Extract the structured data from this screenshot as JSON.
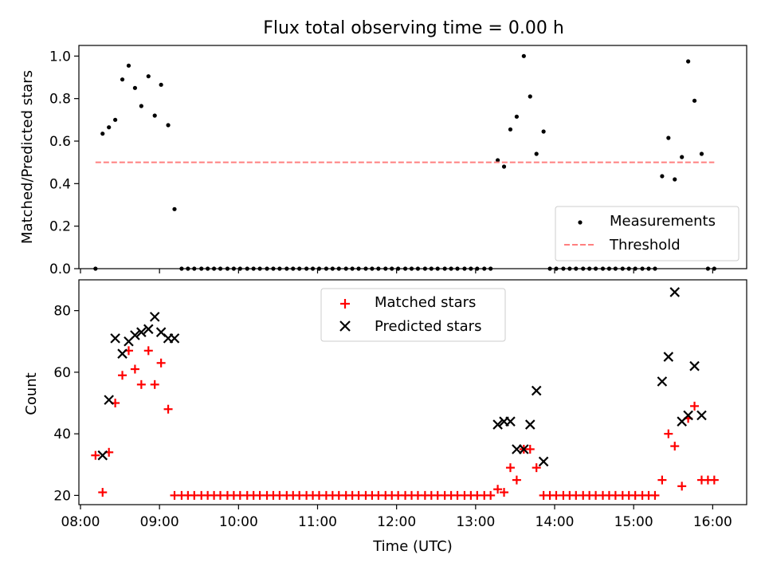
{
  "figure": {
    "title": "Flux total observing time = 0.00 h",
    "xlabel": "Time (UTC)"
  },
  "colors": {
    "measurement": "#000000",
    "threshold": "#ff7f7f",
    "matched": "#ff0000",
    "predicted": "#000000"
  },
  "chart_data": [
    {
      "type": "scatter",
      "ylabel": "Matched/Predicted stars",
      "xlim": [
        7.98,
        16.43
      ],
      "ylim": [
        0,
        1.05
      ],
      "x_ticks": [
        8,
        9,
        10,
        11,
        12,
        13,
        14,
        15,
        16
      ],
      "y_ticks": [
        0.0,
        0.2,
        0.4,
        0.6,
        0.8,
        1.0
      ],
      "y_tick_labels": [
        "0.0",
        "0.2",
        "0.4",
        "0.6",
        "0.8",
        "1.0"
      ],
      "x_tick_labels_shown": false,
      "legend": {
        "placement": "lower-right",
        "entries": [
          "Measurements",
          "Threshold"
        ]
      },
      "series": [
        {
          "name": "Measurements",
          "marker": "dot",
          "points": [
            [
              8.19,
              0.0
            ],
            [
              8.28,
              0.635
            ],
            [
              8.36,
              0.665
            ],
            [
              8.44,
              0.7
            ],
            [
              8.53,
              0.89
            ],
            [
              8.61,
              0.955
            ],
            [
              8.69,
              0.85
            ],
            [
              8.77,
              0.765
            ],
            [
              8.86,
              0.905
            ],
            [
              8.94,
              0.72
            ],
            [
              9.02,
              0.865
            ],
            [
              9.11,
              0.675
            ],
            [
              9.19,
              0.28
            ],
            [
              9.28,
              0.0
            ],
            [
              9.36,
              0.0
            ],
            [
              9.44,
              0.0
            ],
            [
              9.53,
              0.0
            ],
            [
              9.61,
              0.0
            ],
            [
              9.69,
              0.0
            ],
            [
              9.77,
              0.0
            ],
            [
              9.86,
              0.0
            ],
            [
              9.94,
              0.0
            ],
            [
              10.02,
              0.0
            ],
            [
              10.11,
              0.0
            ],
            [
              10.19,
              0.0
            ],
            [
              10.27,
              0.0
            ],
            [
              10.36,
              0.0
            ],
            [
              10.44,
              0.0
            ],
            [
              10.52,
              0.0
            ],
            [
              10.61,
              0.0
            ],
            [
              10.69,
              0.0
            ],
            [
              10.77,
              0.0
            ],
            [
              10.86,
              0.0
            ],
            [
              10.94,
              0.0
            ],
            [
              11.02,
              0.0
            ],
            [
              11.11,
              0.0
            ],
            [
              11.19,
              0.0
            ],
            [
              11.27,
              0.0
            ],
            [
              11.36,
              0.0
            ],
            [
              11.44,
              0.0
            ],
            [
              11.52,
              0.0
            ],
            [
              11.61,
              0.0
            ],
            [
              11.69,
              0.0
            ],
            [
              11.77,
              0.0
            ],
            [
              11.86,
              0.0
            ],
            [
              11.94,
              0.0
            ],
            [
              12.02,
              0.0
            ],
            [
              12.11,
              0.0
            ],
            [
              12.19,
              0.0
            ],
            [
              12.27,
              0.0
            ],
            [
              12.36,
              0.0
            ],
            [
              12.44,
              0.0
            ],
            [
              12.52,
              0.0
            ],
            [
              12.61,
              0.0
            ],
            [
              12.69,
              0.0
            ],
            [
              12.77,
              0.0
            ],
            [
              12.86,
              0.0
            ],
            [
              12.94,
              0.0
            ],
            [
              13.02,
              0.0
            ],
            [
              13.11,
              0.0
            ],
            [
              13.19,
              0.0
            ],
            [
              13.28,
              0.51
            ],
            [
              13.36,
              0.48
            ],
            [
              13.44,
              0.655
            ],
            [
              13.52,
              0.715
            ],
            [
              13.61,
              1.0
            ],
            [
              13.69,
              0.81
            ],
            [
              13.77,
              0.54
            ],
            [
              13.86,
              0.645
            ],
            [
              13.94,
              0.0
            ],
            [
              14.02,
              0.0
            ],
            [
              14.11,
              0.0
            ],
            [
              14.19,
              0.0
            ],
            [
              14.27,
              0.0
            ],
            [
              14.36,
              0.0
            ],
            [
              14.44,
              0.0
            ],
            [
              14.52,
              0.0
            ],
            [
              14.61,
              0.0
            ],
            [
              14.69,
              0.0
            ],
            [
              14.77,
              0.0
            ],
            [
              14.86,
              0.0
            ],
            [
              14.94,
              0.0
            ],
            [
              15.02,
              0.0
            ],
            [
              15.11,
              0.0
            ],
            [
              15.19,
              0.0
            ],
            [
              15.27,
              0.0
            ],
            [
              15.36,
              0.435
            ],
            [
              15.44,
              0.615
            ],
            [
              15.52,
              0.42
            ],
            [
              15.61,
              0.525
            ],
            [
              15.69,
              0.975
            ],
            [
              15.77,
              0.79
            ],
            [
              15.86,
              0.54
            ],
            [
              15.94,
              0.0
            ],
            [
              16.02,
              0.0
            ]
          ]
        },
        {
          "name": "Threshold",
          "marker": "dashed-line",
          "points": [
            [
              8.19,
              0.5
            ],
            [
              16.02,
              0.5
            ]
          ]
        }
      ]
    },
    {
      "type": "scatter",
      "ylabel": "Count",
      "xlim": [
        7.98,
        16.43
      ],
      "ylim": [
        17,
        90
      ],
      "x_ticks": [
        8,
        9,
        10,
        11,
        12,
        13,
        14,
        15,
        16
      ],
      "x_tick_labels": [
        "08:00",
        "09:00",
        "10:00",
        "11:00",
        "12:00",
        "13:00",
        "14:00",
        "15:00",
        "16:00"
      ],
      "y_ticks": [
        20,
        40,
        60,
        80
      ],
      "y_tick_labels": [
        "20",
        "40",
        "60",
        "80"
      ],
      "legend": {
        "placement": "upper-center",
        "entries": [
          "Matched stars",
          "Predicted stars"
        ]
      },
      "series": [
        {
          "name": "Matched stars",
          "marker": "plus",
          "points": [
            [
              8.19,
              33
            ],
            [
              8.28,
              21
            ],
            [
              8.36,
              34
            ],
            [
              8.44,
              50
            ],
            [
              8.53,
              59
            ],
            [
              8.61,
              67
            ],
            [
              8.69,
              61
            ],
            [
              8.77,
              56
            ],
            [
              8.86,
              67
            ],
            [
              8.94,
              56
            ],
            [
              9.02,
              63
            ],
            [
              9.11,
              48
            ],
            [
              9.19,
              20
            ],
            [
              9.28,
              20
            ],
            [
              9.36,
              20
            ],
            [
              9.44,
              20
            ],
            [
              9.53,
              20
            ],
            [
              9.61,
              20
            ],
            [
              9.69,
              20
            ],
            [
              9.77,
              20
            ],
            [
              9.86,
              20
            ],
            [
              9.94,
              20
            ],
            [
              10.02,
              20
            ],
            [
              10.11,
              20
            ],
            [
              10.19,
              20
            ],
            [
              10.27,
              20
            ],
            [
              10.36,
              20
            ],
            [
              10.44,
              20
            ],
            [
              10.52,
              20
            ],
            [
              10.61,
              20
            ],
            [
              10.69,
              20
            ],
            [
              10.77,
              20
            ],
            [
              10.86,
              20
            ],
            [
              10.94,
              20
            ],
            [
              11.02,
              20
            ],
            [
              11.11,
              20
            ],
            [
              11.19,
              20
            ],
            [
              11.27,
              20
            ],
            [
              11.36,
              20
            ],
            [
              11.44,
              20
            ],
            [
              11.52,
              20
            ],
            [
              11.61,
              20
            ],
            [
              11.69,
              20
            ],
            [
              11.77,
              20
            ],
            [
              11.86,
              20
            ],
            [
              11.94,
              20
            ],
            [
              12.02,
              20
            ],
            [
              12.11,
              20
            ],
            [
              12.19,
              20
            ],
            [
              12.27,
              20
            ],
            [
              12.36,
              20
            ],
            [
              12.44,
              20
            ],
            [
              12.52,
              20
            ],
            [
              12.61,
              20
            ],
            [
              12.69,
              20
            ],
            [
              12.77,
              20
            ],
            [
              12.86,
              20
            ],
            [
              12.94,
              20
            ],
            [
              13.02,
              20
            ],
            [
              13.11,
              20
            ],
            [
              13.19,
              20
            ],
            [
              13.28,
              22
            ],
            [
              13.36,
              21
            ],
            [
              13.44,
              29
            ],
            [
              13.52,
              25
            ],
            [
              13.61,
              35
            ],
            [
              13.69,
              35
            ],
            [
              13.77,
              29
            ],
            [
              13.86,
              20
            ],
            [
              13.94,
              20
            ],
            [
              14.02,
              20
            ],
            [
              14.11,
              20
            ],
            [
              14.19,
              20
            ],
            [
              14.27,
              20
            ],
            [
              14.36,
              20
            ],
            [
              14.44,
              20
            ],
            [
              14.52,
              20
            ],
            [
              14.61,
              20
            ],
            [
              14.69,
              20
            ],
            [
              14.77,
              20
            ],
            [
              14.86,
              20
            ],
            [
              14.94,
              20
            ],
            [
              15.02,
              20
            ],
            [
              15.11,
              20
            ],
            [
              15.19,
              20
            ],
            [
              15.27,
              20
            ],
            [
              15.36,
              25
            ],
            [
              15.44,
              40
            ],
            [
              15.52,
              36
            ],
            [
              15.61,
              23
            ],
            [
              15.69,
              45
            ],
            [
              15.77,
              49
            ],
            [
              15.86,
              25
            ],
            [
              15.94,
              25
            ],
            [
              16.02,
              25
            ]
          ]
        },
        {
          "name": "Predicted stars",
          "marker": "x",
          "points": [
            [
              8.28,
              33
            ],
            [
              8.36,
              51
            ],
            [
              8.44,
              71
            ],
            [
              8.53,
              66
            ],
            [
              8.61,
              70
            ],
            [
              8.69,
              72
            ],
            [
              8.77,
              73
            ],
            [
              8.86,
              74
            ],
            [
              8.94,
              78
            ],
            [
              9.02,
              73
            ],
            [
              9.11,
              71
            ],
            [
              9.19,
              71
            ],
            [
              13.28,
              43
            ],
            [
              13.36,
              44
            ],
            [
              13.44,
              44
            ],
            [
              13.52,
              35
            ],
            [
              13.61,
              35
            ],
            [
              13.69,
              43
            ],
            [
              13.77,
              54
            ],
            [
              13.86,
              31
            ],
            [
              15.36,
              57
            ],
            [
              15.44,
              65
            ],
            [
              15.52,
              86
            ],
            [
              15.61,
              44
            ],
            [
              15.69,
              46
            ],
            [
              15.77,
              62
            ],
            [
              15.86,
              46
            ]
          ]
        }
      ]
    }
  ]
}
